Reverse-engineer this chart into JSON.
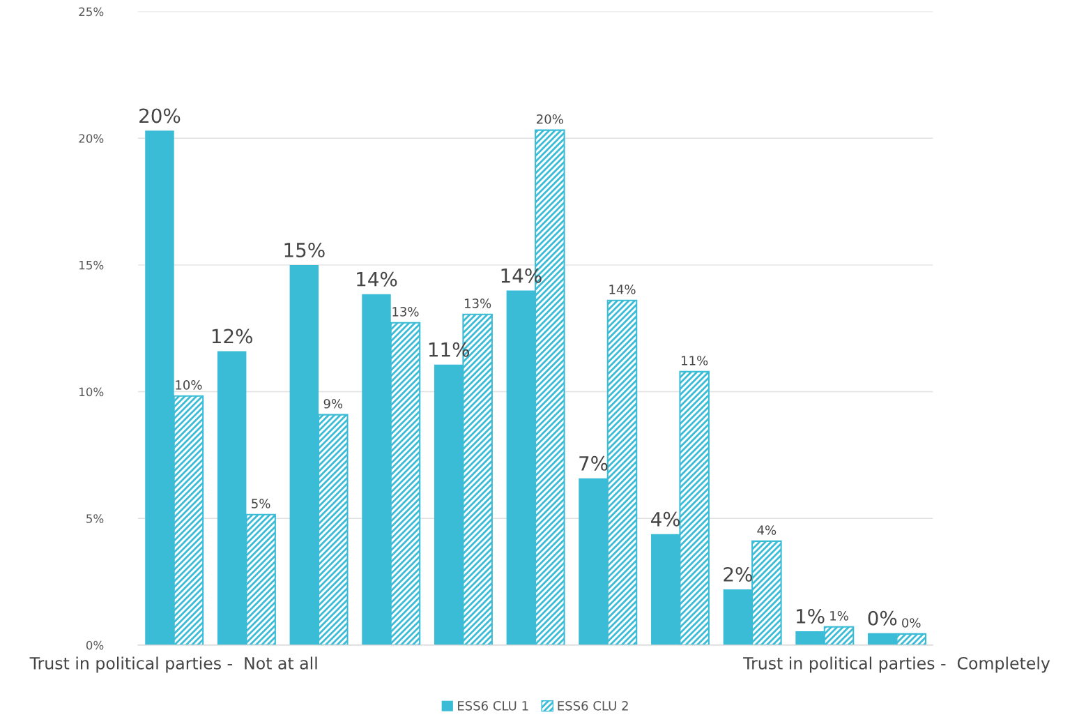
{
  "chart_data": {
    "type": "bar",
    "categories": [
      "Trust in political parties -  Not at all",
      null,
      null,
      null,
      null,
      null,
      null,
      null,
      null,
      null,
      "Trust in political parties -  Completely"
    ],
    "series": [
      {
        "name": "ESS6 CLU 1",
        "color": "#3bbcd6",
        "values": [
          20.3,
          11.6,
          15.0,
          13.85,
          11.07,
          13.99,
          6.58,
          4.38,
          2.2,
          0.55,
          0.47
        ],
        "value_labels": [
          "20%",
          "12%",
          "15%",
          "14%",
          "11%",
          "14%",
          "7%",
          "4%",
          "2%",
          "1%",
          "0%"
        ]
      },
      {
        "name": "ESS6 CLU 2",
        "color": "#3bbcd6",
        "values": [
          9.83,
          5.15,
          9.09,
          12.72,
          13.05,
          20.32,
          13.6,
          10.79,
          4.1,
          0.72,
          0.44
        ],
        "value_labels": [
          "10%",
          "5%",
          "9%",
          "13%",
          "13%",
          "20%",
          "14%",
          "11%",
          "4%",
          "1%",
          "0%"
        ]
      }
    ],
    "ylim": [
      0,
      25
    ],
    "yticks": [
      {
        "value": 0,
        "label": "0%"
      },
      {
        "value": 5,
        "label": "5%"
      },
      {
        "value": 10,
        "label": "10%"
      },
      {
        "value": 15,
        "label": "15%"
      },
      {
        "value": 20,
        "label": "20%"
      },
      {
        "value": 25,
        "label": "25%"
      }
    ],
    "grid": "y",
    "legend": "bottom"
  }
}
